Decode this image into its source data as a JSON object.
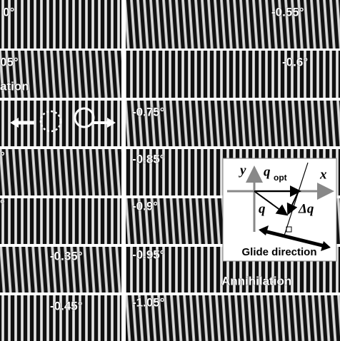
{
  "panels": {
    "left": [
      "0°",
      "05°",
      "",
      "°",
      "°",
      "-0.35°",
      "-0.45°"
    ],
    "right": [
      "-0.55°",
      "-0.6°",
      "-0.75°",
      "-0.85°",
      "-0.9°",
      "-0.95°",
      "-1.05°"
    ]
  },
  "annotations": {
    "left_row2": "ation",
    "right_row6": "Annihilation"
  },
  "inset": {
    "y_axis": "y",
    "x_axis": "x",
    "q_opt": "q",
    "q_opt_sub": "opt",
    "q": "q",
    "delta_q": "Δq",
    "caption": "Glide direction"
  }
}
